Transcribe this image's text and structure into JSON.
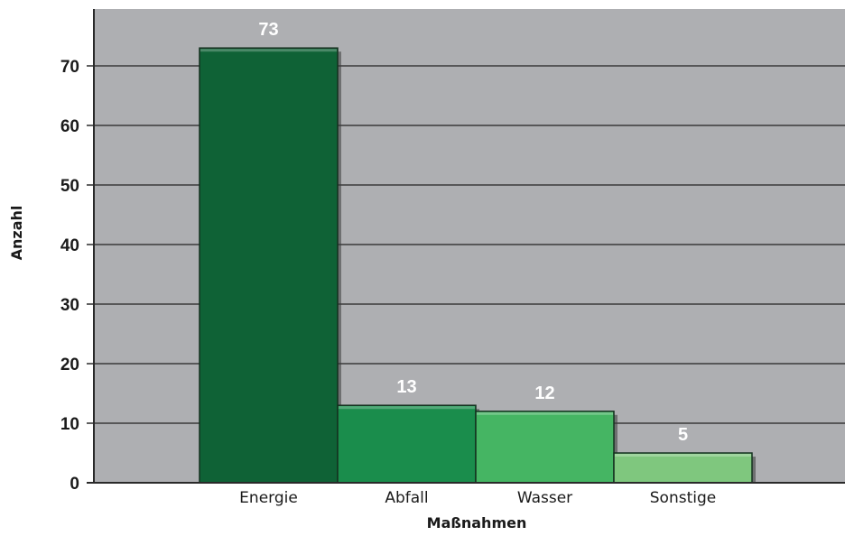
{
  "chart_data": {
    "type": "bar",
    "categories": [
      "Energie",
      "Abfall",
      "Wasser",
      "Sonstige"
    ],
    "values": [
      73,
      13,
      12,
      5
    ],
    "data_labels": [
      "73",
      "13",
      "12",
      "5"
    ],
    "xlabel": "Maßnahmen",
    "ylabel": "Anzahl",
    "ylim": [
      0,
      78
    ],
    "yticks": [
      0,
      10,
      20,
      30,
      40,
      50,
      60,
      70
    ],
    "grid": true,
    "legend": "none",
    "colors": {
      "plot_background": "#aeafb2",
      "gridline": "#3a3a3a",
      "bars": [
        "#0f6236",
        "#1a8d4c",
        "#45b563",
        "#7fc77e"
      ]
    }
  }
}
